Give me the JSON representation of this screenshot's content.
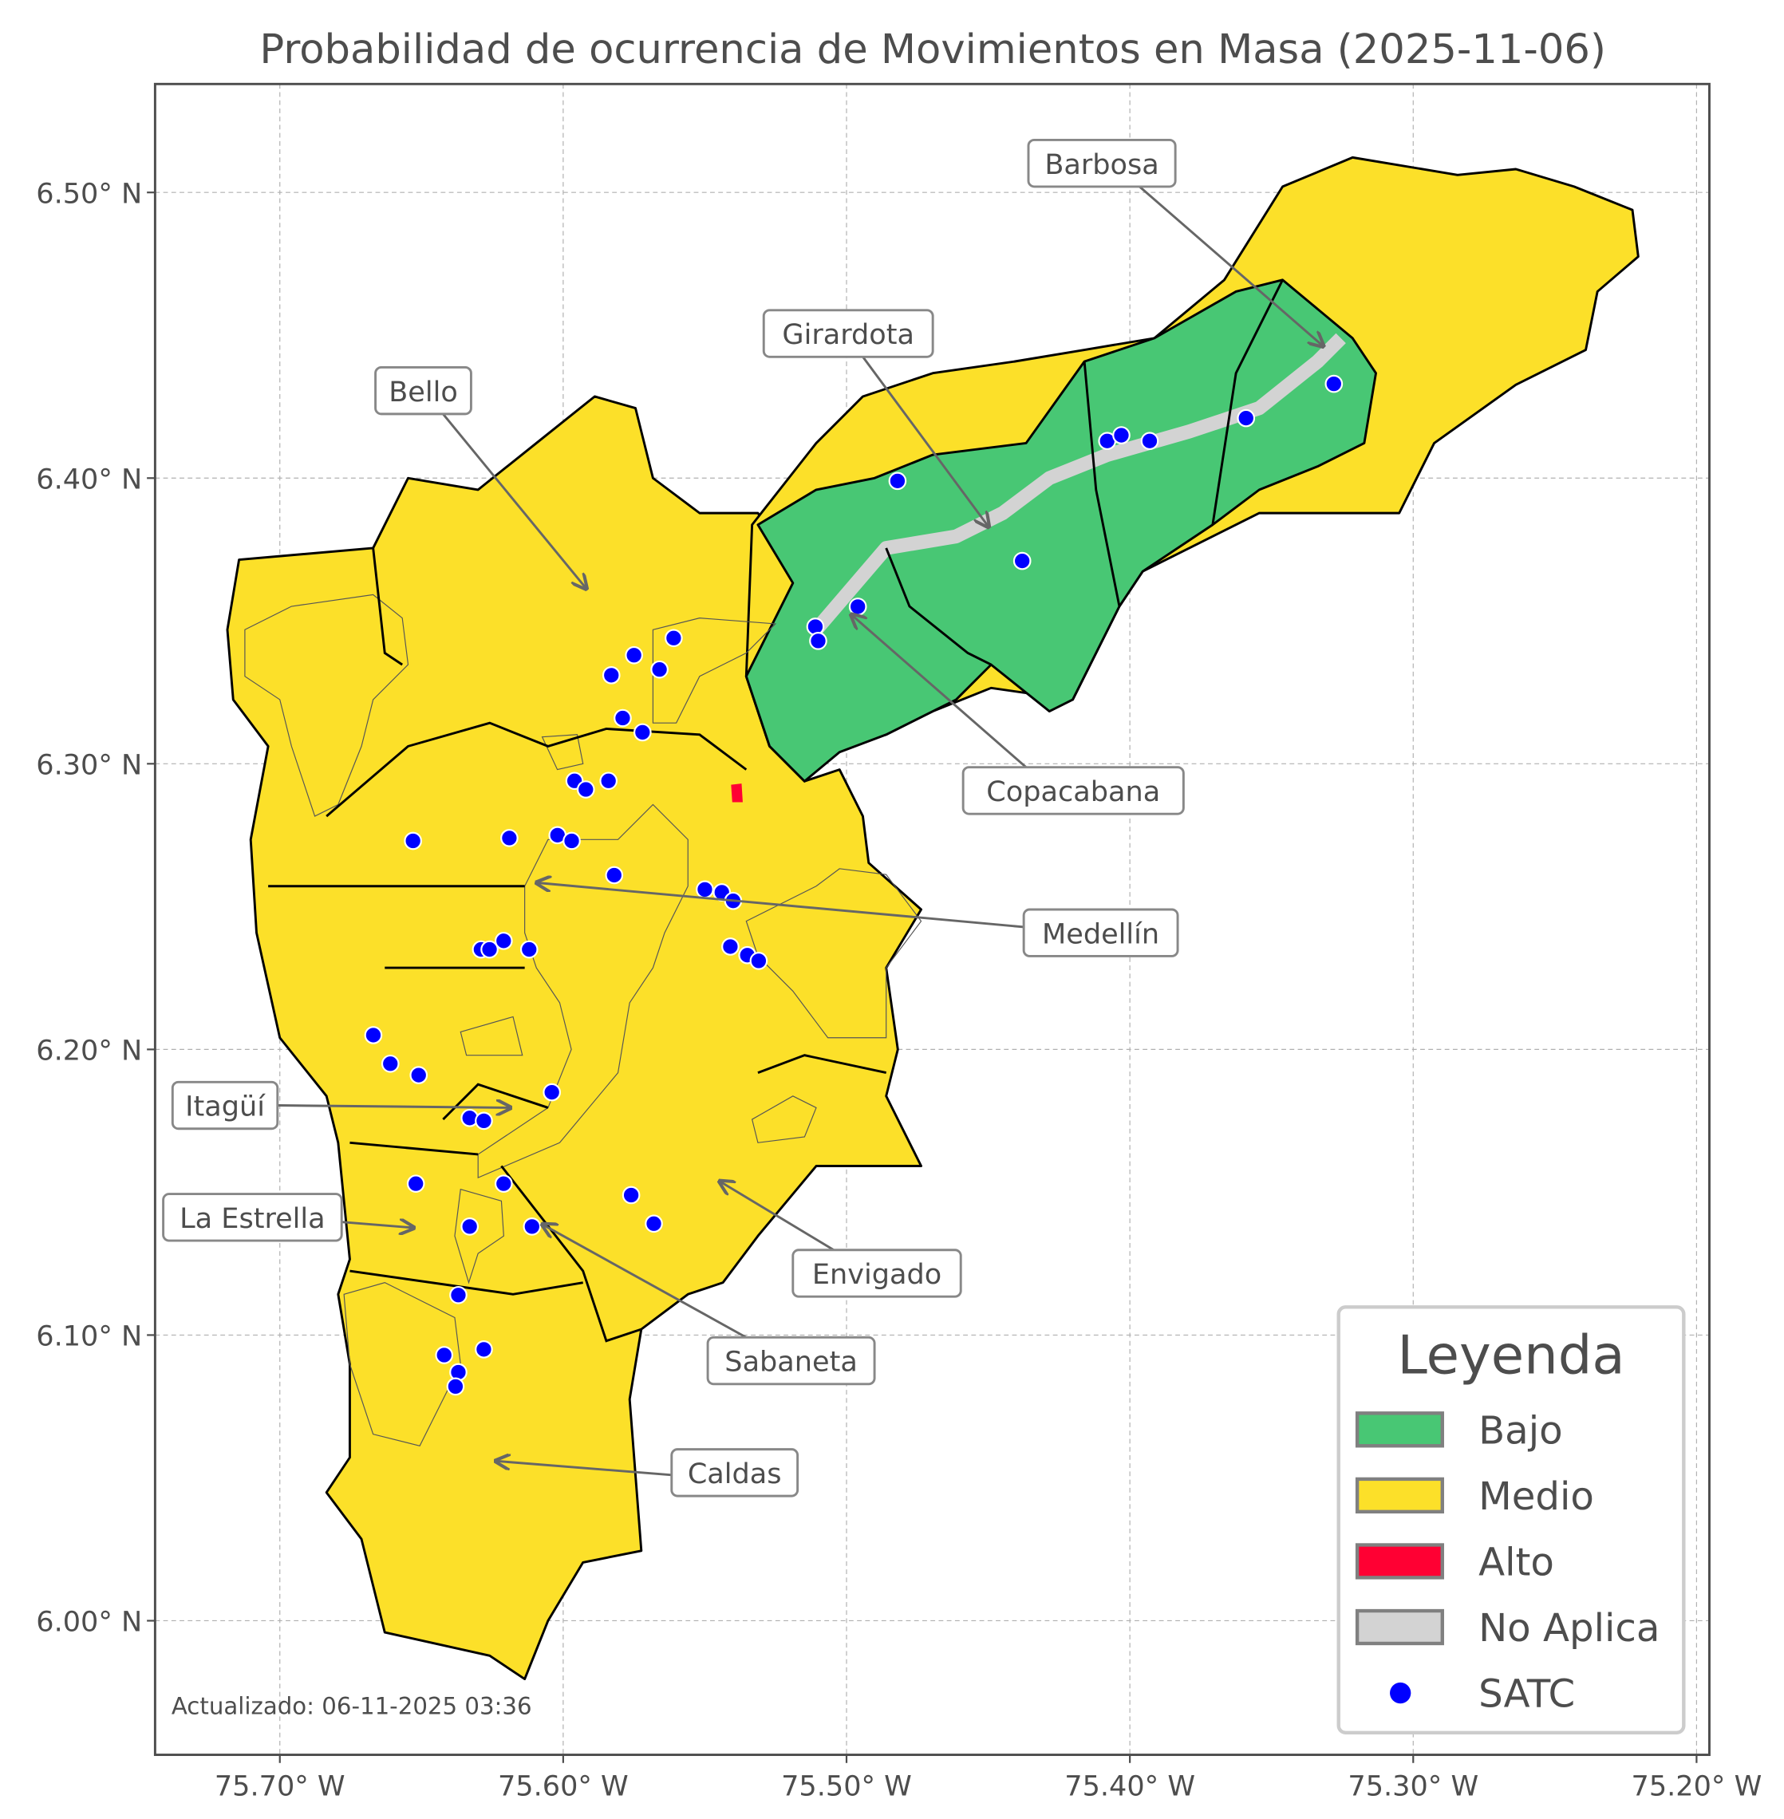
{
  "title": "Probabilidad de ocurrencia de Movimientos en Masa (2025-11-06)",
  "updated_note": "Actualizado: 06-11-2025 03:36",
  "axes": {
    "x_ticks": [
      "75.70° W",
      "75.60° W",
      "75.50° W",
      "75.40° W",
      "75.30° W",
      "75.20° W"
    ],
    "x_tick_values": [
      -75.7,
      -75.6,
      -75.5,
      -75.4,
      -75.3,
      -75.2
    ],
    "y_ticks": [
      "6.00° N",
      "6.10° N",
      "6.20° N",
      "6.30° N",
      "6.40° N",
      "6.50° N"
    ],
    "y_tick_values": [
      6.0,
      6.1,
      6.2,
      6.3,
      6.4,
      6.5
    ],
    "xlim": [
      -75.744,
      -75.196
    ],
    "ylim": [
      5.956,
      6.54
    ],
    "grid": true
  },
  "legend": {
    "title": "Leyenda",
    "placement": "bottom-right",
    "items": [
      {
        "label": "Bajo",
        "color": "#48c774",
        "kind": "patch"
      },
      {
        "label": "Medio",
        "color": "#fce029",
        "kind": "patch"
      },
      {
        "label": "Alto",
        "color": "#ff0033",
        "kind": "patch"
      },
      {
        "label": "No Aplica",
        "color": "#d3d3d3",
        "kind": "patch"
      },
      {
        "label": "SATC",
        "color": "#0000ff",
        "kind": "point"
      }
    ]
  },
  "municipalities": [
    {
      "name": "Barbosa"
    },
    {
      "name": "Girardota"
    },
    {
      "name": "Bello"
    },
    {
      "name": "Copacabana"
    },
    {
      "name": "Medellín"
    },
    {
      "name": "Itagüí"
    },
    {
      "name": "La Estrella"
    },
    {
      "name": "Envigado"
    },
    {
      "name": "Sabaneta"
    },
    {
      "name": "Caldas"
    }
  ],
  "satc_stations": [
    [
      -75.482,
      6.399
    ],
    [
      -75.408,
      6.413
    ],
    [
      -75.403,
      6.415
    ],
    [
      -75.393,
      6.413
    ],
    [
      -75.359,
      6.421
    ],
    [
      -75.328,
      6.433
    ],
    [
      -75.438,
      6.371
    ],
    [
      -75.496,
      6.355
    ],
    [
      -75.511,
      6.348
    ],
    [
      -75.51,
      6.343
    ],
    [
      -75.561,
      6.344
    ],
    [
      -75.575,
      6.338
    ],
    [
      -75.566,
      6.333
    ],
    [
      -75.583,
      6.331
    ],
    [
      -75.579,
      6.316
    ],
    [
      -75.572,
      6.311
    ],
    [
      -75.596,
      6.294
    ],
    [
      -75.592,
      6.291
    ],
    [
      -75.584,
      6.294
    ],
    [
      -75.619,
      6.274
    ],
    [
      -75.653,
      6.273
    ],
    [
      -75.602,
      6.275
    ],
    [
      -75.597,
      6.273
    ],
    [
      -75.582,
      6.261
    ],
    [
      -75.55,
      6.256
    ],
    [
      -75.544,
      6.255
    ],
    [
      -75.54,
      6.252
    ],
    [
      -75.541,
      6.236
    ],
    [
      -75.535,
      6.233
    ],
    [
      -75.531,
      6.231
    ],
    [
      -75.621,
      6.238
    ],
    [
      -75.612,
      6.235
    ],
    [
      -75.629,
      6.235
    ],
    [
      -75.626,
      6.235
    ],
    [
      -75.667,
      6.205
    ],
    [
      -75.661,
      6.195
    ],
    [
      -75.651,
      6.191
    ],
    [
      -75.604,
      6.185
    ],
    [
      -75.633,
      6.176
    ],
    [
      -75.628,
      6.175
    ],
    [
      -75.652,
      6.153
    ],
    [
      -75.621,
      6.153
    ],
    [
      -75.576,
      6.149
    ],
    [
      -75.568,
      6.139
    ],
    [
      -75.633,
      6.138
    ],
    [
      -75.611,
      6.138
    ],
    [
      -75.637,
      6.114
    ],
    [
      -75.642,
      6.093
    ],
    [
      -75.628,
      6.095
    ],
    [
      -75.637,
      6.087
    ],
    [
      -75.638,
      6.082
    ]
  ]
}
